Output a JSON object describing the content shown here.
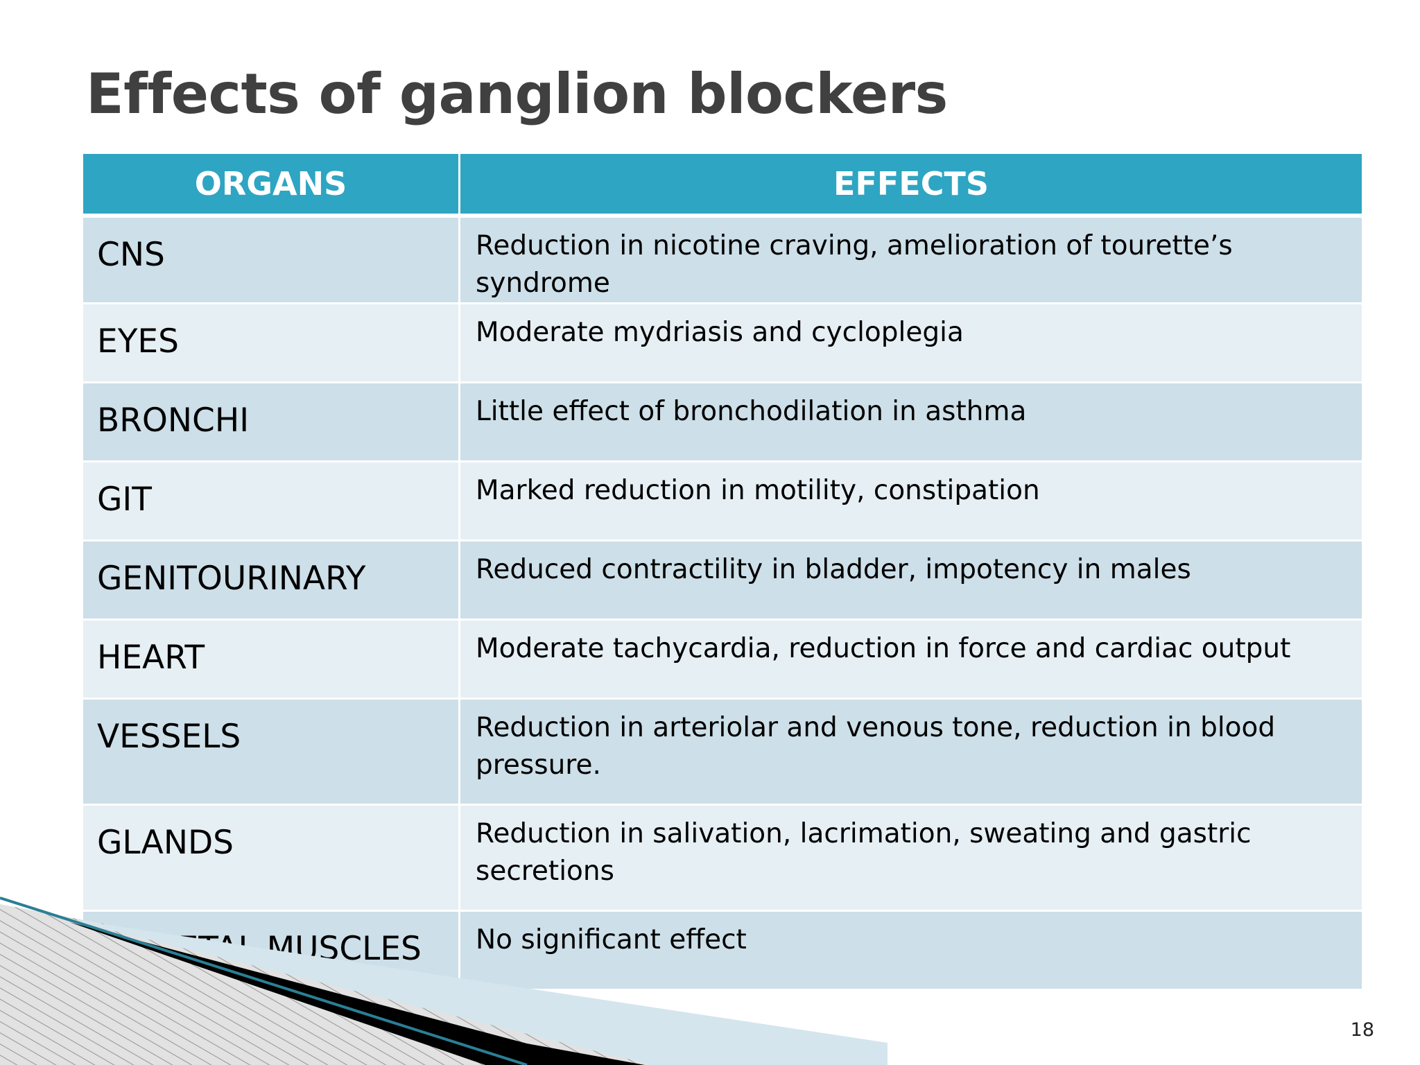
{
  "slide": {
    "title": "Effects of ganglion blockers",
    "page_number": "18"
  },
  "table": {
    "headers": [
      "ORGANS",
      "EFFECTS"
    ],
    "rows": [
      {
        "organ": "CNS",
        "effect": "Reduction in nicotine craving, amelioration of tourette’s syndrome"
      },
      {
        "organ": "EYES",
        "effect": "Moderate mydriasis and cycloplegia"
      },
      {
        "organ": "BRONCHI",
        "effect": "Little effect of bronchodilation in asthma"
      },
      {
        "organ": "GIT",
        "effect": "Marked reduction in motility, constipation"
      },
      {
        "organ": "GENITOURINARY",
        "effect": "Reduced contractility in bladder, impotency in males"
      },
      {
        "organ": "HEART",
        "effect": "Moderate tachycardia, reduction in force and cardiac output"
      },
      {
        "organ": "VESSELS",
        "effect": "Reduction in arteriolar and venous tone, reduction in blood pressure."
      },
      {
        "organ": "GLANDS",
        "effect": "Reduction in salivation, lacrimation, sweating and gastric secretions"
      },
      {
        "organ": "SKELETAL MUSCLES",
        "effect": "No significant effect"
      }
    ]
  },
  "colors": {
    "header_bg": "#2ea5c2",
    "row_band_1": "#cddfe8",
    "row_band_2": "#e6eff4",
    "title_text": "#404040"
  }
}
